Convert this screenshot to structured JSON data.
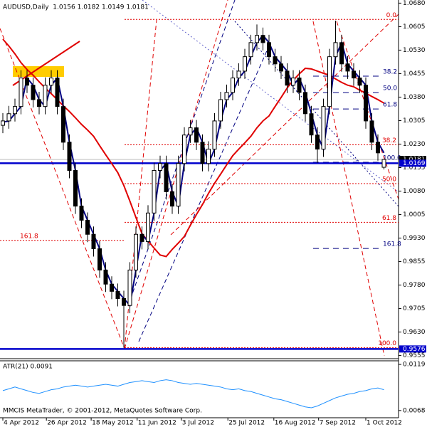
{
  "chart_data": {
    "type": "candlestick",
    "title": "AUDUSD,Daily  1.0156 1.0182 1.0149 1.0181",
    "open": [
      1.029,
      1.0304,
      1.0327,
      1.035,
      1.0441,
      1.0418,
      1.0372,
      1.035,
      1.0418,
      1.0441,
      1.035,
      1.0236,
      1.0146,
      1.0032,
      0.9987,
      0.9942,
      0.9896,
      0.9828,
      0.9783,
      0.976,
      0.9737,
      0.9715,
      0.9828,
      0.9942,
      0.9919,
      1.001,
      1.0146,
      1.0168,
      1.0078,
      1.0032,
      1.0168,
      1.0259,
      1.0282,
      1.0236,
      1.0168,
      1.0214,
      1.0304,
      1.0372,
      1.0395,
      1.0441,
      1.0463,
      1.0509,
      1.0554,
      1.0577,
      1.0554,
      1.0509,
      1.0486,
      1.0463,
      1.0418,
      1.0441,
      1.0395,
      1.0327,
      1.0259,
      1.0214,
      1.035,
      1.0509,
      1.0554,
      1.0486,
      1.0463,
      1.0441,
      1.0418,
      1.0304,
      1.0236,
      1.0156
    ],
    "high": [
      1.0329,
      1.0352,
      1.0375,
      1.0466,
      1.0466,
      1.0443,
      1.0397,
      1.0443,
      1.0466,
      1.0466,
      1.0375,
      1.0261,
      1.0171,
      1.0057,
      1.0012,
      0.9967,
      0.9921,
      0.9853,
      0.9808,
      0.9785,
      0.9762,
      0.9853,
      0.9967,
      0.9967,
      1.0035,
      1.0171,
      1.0193,
      1.0193,
      1.0103,
      1.0193,
      1.0284,
      1.0307,
      1.0307,
      1.0261,
      1.0239,
      1.0329,
      1.0397,
      1.042,
      1.0466,
      1.0488,
      1.0534,
      1.0579,
      1.0612,
      1.0602,
      1.0579,
      1.0534,
      1.0511,
      1.0488,
      1.0466,
      1.0466,
      1.042,
      1.0352,
      1.0284,
      1.0375,
      1.0534,
      1.0624,
      1.0579,
      1.0511,
      1.0488,
      1.0466,
      1.0443,
      1.0329,
      1.0261,
      1.0182
    ],
    "low": [
      1.0265,
      1.0279,
      1.0302,
      1.0325,
      1.0393,
      1.0347,
      1.0325,
      1.0325,
      1.0393,
      1.0325,
      1.0211,
      1.0121,
      1.0007,
      0.9962,
      0.9917,
      0.9871,
      0.9803,
      0.9758,
      0.9735,
      0.9712,
      0.958,
      0.969,
      0.9803,
      0.9894,
      0.9894,
      0.9985,
      1.0121,
      1.0053,
      1.0007,
      1.0007,
      1.0143,
      1.0234,
      1.0211,
      1.0143,
      1.0143,
      1.0189,
      1.0279,
      1.0347,
      1.037,
      1.0416,
      1.0438,
      1.0484,
      1.0529,
      1.0529,
      1.0484,
      1.0461,
      1.0438,
      1.0393,
      1.0393,
      1.037,
      1.0302,
      1.0234,
      1.017,
      1.0189,
      1.0325,
      1.0484,
      1.0461,
      1.0438,
      1.0416,
      1.0393,
      1.0279,
      1.0211,
      1.0177,
      1.0149
    ],
    "close": [
      1.0304,
      1.0327,
      1.035,
      1.0441,
      1.0418,
      1.0372,
      1.035,
      1.0418,
      1.0441,
      1.035,
      1.0236,
      1.0146,
      1.0032,
      0.9987,
      0.9942,
      0.9896,
      0.9828,
      0.9783,
      0.976,
      0.9737,
      0.9715,
      0.9828,
      0.9942,
      0.9919,
      1.001,
      1.0146,
      1.0168,
      1.0078,
      1.0032,
      1.0168,
      1.0259,
      1.0282,
      1.0236,
      1.0168,
      1.0214,
      1.0304,
      1.0372,
      1.0395,
      1.0441,
      1.0463,
      1.0509,
      1.0554,
      1.0577,
      1.0554,
      1.0509,
      1.0486,
      1.0463,
      1.0418,
      1.0441,
      1.0395,
      1.0327,
      1.0259,
      1.0214,
      1.035,
      1.0509,
      1.0554,
      1.0486,
      1.0463,
      1.0441,
      1.0418,
      1.0304,
      1.0236,
      1.0202,
      1.0181
    ],
    "moving_averages": [
      {
        "color": "#e00000",
        "values": [
          1.0565,
          1.0543,
          1.0518,
          1.049,
          1.0468,
          1.045,
          1.0429,
          1.0409,
          1.0391,
          1.0372,
          1.0352,
          1.0334,
          1.0314,
          1.0293,
          1.0275,
          1.0255,
          1.0225,
          1.0196,
          1.0168,
          1.0139,
          1.0098,
          1.0048,
          0.9996,
          0.9944,
          0.9921,
          0.9898,
          0.9876,
          0.9871,
          0.9894,
          0.9914,
          0.9935,
          0.9971,
          1.0005,
          1.0037,
          1.0073,
          1.0105,
          1.0134,
          1.0164,
          1.0193,
          1.0214,
          1.0234,
          1.0255,
          1.0282,
          1.0304,
          1.032,
          1.035,
          1.0379,
          1.0409,
          1.0434,
          1.0454,
          1.0472,
          1.047,
          1.0463,
          1.0456,
          1.045,
          1.0438,
          1.0427,
          1.0418,
          1.0413,
          1.0402,
          1.0393,
          1.0382,
          1.0372,
          1.0361
        ]
      },
      {
        "color": "#000080",
        "values": [
          1.03,
          1.0304,
          1.0327,
          1.035,
          1.0441,
          1.0418,
          1.0372,
          1.035,
          1.0418,
          1.0441,
          1.035,
          1.0236,
          1.0146,
          1.0032,
          0.9987,
          0.9942,
          0.9896,
          0.9828,
          0.9783,
          0.976,
          0.9737,
          0.9715,
          0.9828,
          0.9942,
          0.9919,
          1.001,
          1.0146,
          1.0168,
          1.0078,
          1.0032,
          1.0168,
          1.0259,
          1.0282,
          1.0236,
          1.0168,
          1.0214,
          1.0304,
          1.0372,
          1.0395,
          1.0441,
          1.0463,
          1.0509,
          1.0554,
          1.0577,
          1.0554,
          1.0509,
          1.0486,
          1.0463,
          1.0418,
          1.0441,
          1.0395,
          1.0327,
          1.0259,
          1.0214,
          1.035,
          1.0509,
          1.0554,
          1.0486,
          1.0463,
          1.0441,
          1.0418,
          1.0304,
          1.0236,
          1.0202
        ]
      }
    ],
    "ylim": [
      0.9545,
      1.069
    ],
    "yticks": [
      {
        "value": 1.068,
        "label": "1.0680"
      },
      {
        "value": 1.0605,
        "label": "1.0605"
      },
      {
        "value": 1.053,
        "label": "1.0530"
      },
      {
        "value": 1.0455,
        "label": "1.0455"
      },
      {
        "value": 1.038,
        "label": "1.0380"
      },
      {
        "value": 1.0305,
        "label": "1.0305"
      },
      {
        "value": 1.023,
        "label": "1.0230"
      },
      {
        "value": 1.0155,
        "label": "1.0155"
      },
      {
        "value": 1.008,
        "label": "1.0080"
      },
      {
        "value": 1.0005,
        "label": "1.0005"
      },
      {
        "value": 0.993,
        "label": "0.9930"
      },
      {
        "value": 0.9855,
        "label": "0.9855"
      },
      {
        "value": 0.978,
        "label": "0.9780"
      },
      {
        "value": 0.9705,
        "label": "0.9705"
      },
      {
        "value": 0.963,
        "label": "0.9630"
      },
      {
        "value": 0.9555,
        "label": "0.9555"
      }
    ],
    "xticks": [
      {
        "value": 0,
        "label": "4 Apr 2012"
      },
      {
        "value": 7.2,
        "label": "26 Apr 2012"
      },
      {
        "value": 14.6,
        "label": "18 May 2012"
      },
      {
        "value": 22.2,
        "label": "11 Jun 2012"
      },
      {
        "value": 29.5,
        "label": "3 Jul 2012"
      },
      {
        "value": 37.2,
        "label": "25 Jul 2012"
      },
      {
        "value": 44.8,
        "label": "16 Aug 2012"
      },
      {
        "value": 52.2,
        "label": "7 Sep 2012"
      },
      {
        "value": 60,
        "label": "1 Oct 2012"
      }
    ],
    "price_lines": [
      {
        "value": 1.0181,
        "color": "#000000"
      },
      {
        "value": 1.0169,
        "color": "#0000cc"
      },
      {
        "value": 0.9576,
        "color": "#0000cc"
      }
    ],
    "fibonacci": [
      {
        "color": "#e00000",
        "start": 1.0628,
        "end": 0.958,
        "levels": [
          {
            "value": 0,
            "label": "0.0"
          },
          38.2,
          {
            "value": 50,
            "label": "50.0"
          },
          61.8,
          {
            "value": 100,
            "label": "100.0"
          }
        ]
      },
      {
        "color": "#000080",
        "start": 1.0617,
        "end": 1.0172,
        "levels": [
          38.2,
          {
            "value": 50,
            "label": "50.0"
          },
          61.8,
          {
            "value": 100,
            "label": "100.0"
          },
          161.8
        ]
      },
      {
        "color": "#e00000",
        "start": 1.0455,
        "end": 1.0126,
        "levels": [
          161.8
        ]
      }
    ],
    "atr": {
      "title": "ATR(21) 0.0091",
      "color": "#1e90ff",
      "values": [
        0.009,
        0.0092,
        0.0094,
        0.0092,
        0.009,
        0.0088,
        0.0087,
        0.0089,
        0.0091,
        0.0092,
        0.0094,
        0.0095,
        0.0096,
        0.0095,
        0.0094,
        0.0095,
        0.0096,
        0.0097,
        0.0096,
        0.0095,
        0.0097,
        0.0099,
        0.01,
        0.0101,
        0.01,
        0.0099,
        0.0101,
        0.0102,
        0.0101,
        0.0099,
        0.0098,
        0.0097,
        0.0098,
        0.0097,
        0.0096,
        0.0095,
        0.0094,
        0.0092,
        0.0091,
        0.0092,
        0.009,
        0.0089,
        0.0087,
        0.0085,
        0.0083,
        0.0081,
        0.008,
        0.0078,
        0.0076,
        0.0074,
        0.0072,
        0.0071,
        0.0073,
        0.0076,
        0.0079,
        0.0082,
        0.0084,
        0.0086,
        0.0087,
        0.0089,
        0.009,
        0.0092,
        0.0093,
        0.0091
      ],
      "ylim": [
        0.006,
        0.0123
      ],
      "yticks": [
        0.0119,
        0.0068
      ]
    },
    "footer": "MMCIS MetaTrader, © 2001-2012, MetaQuotes Software Corp."
  }
}
